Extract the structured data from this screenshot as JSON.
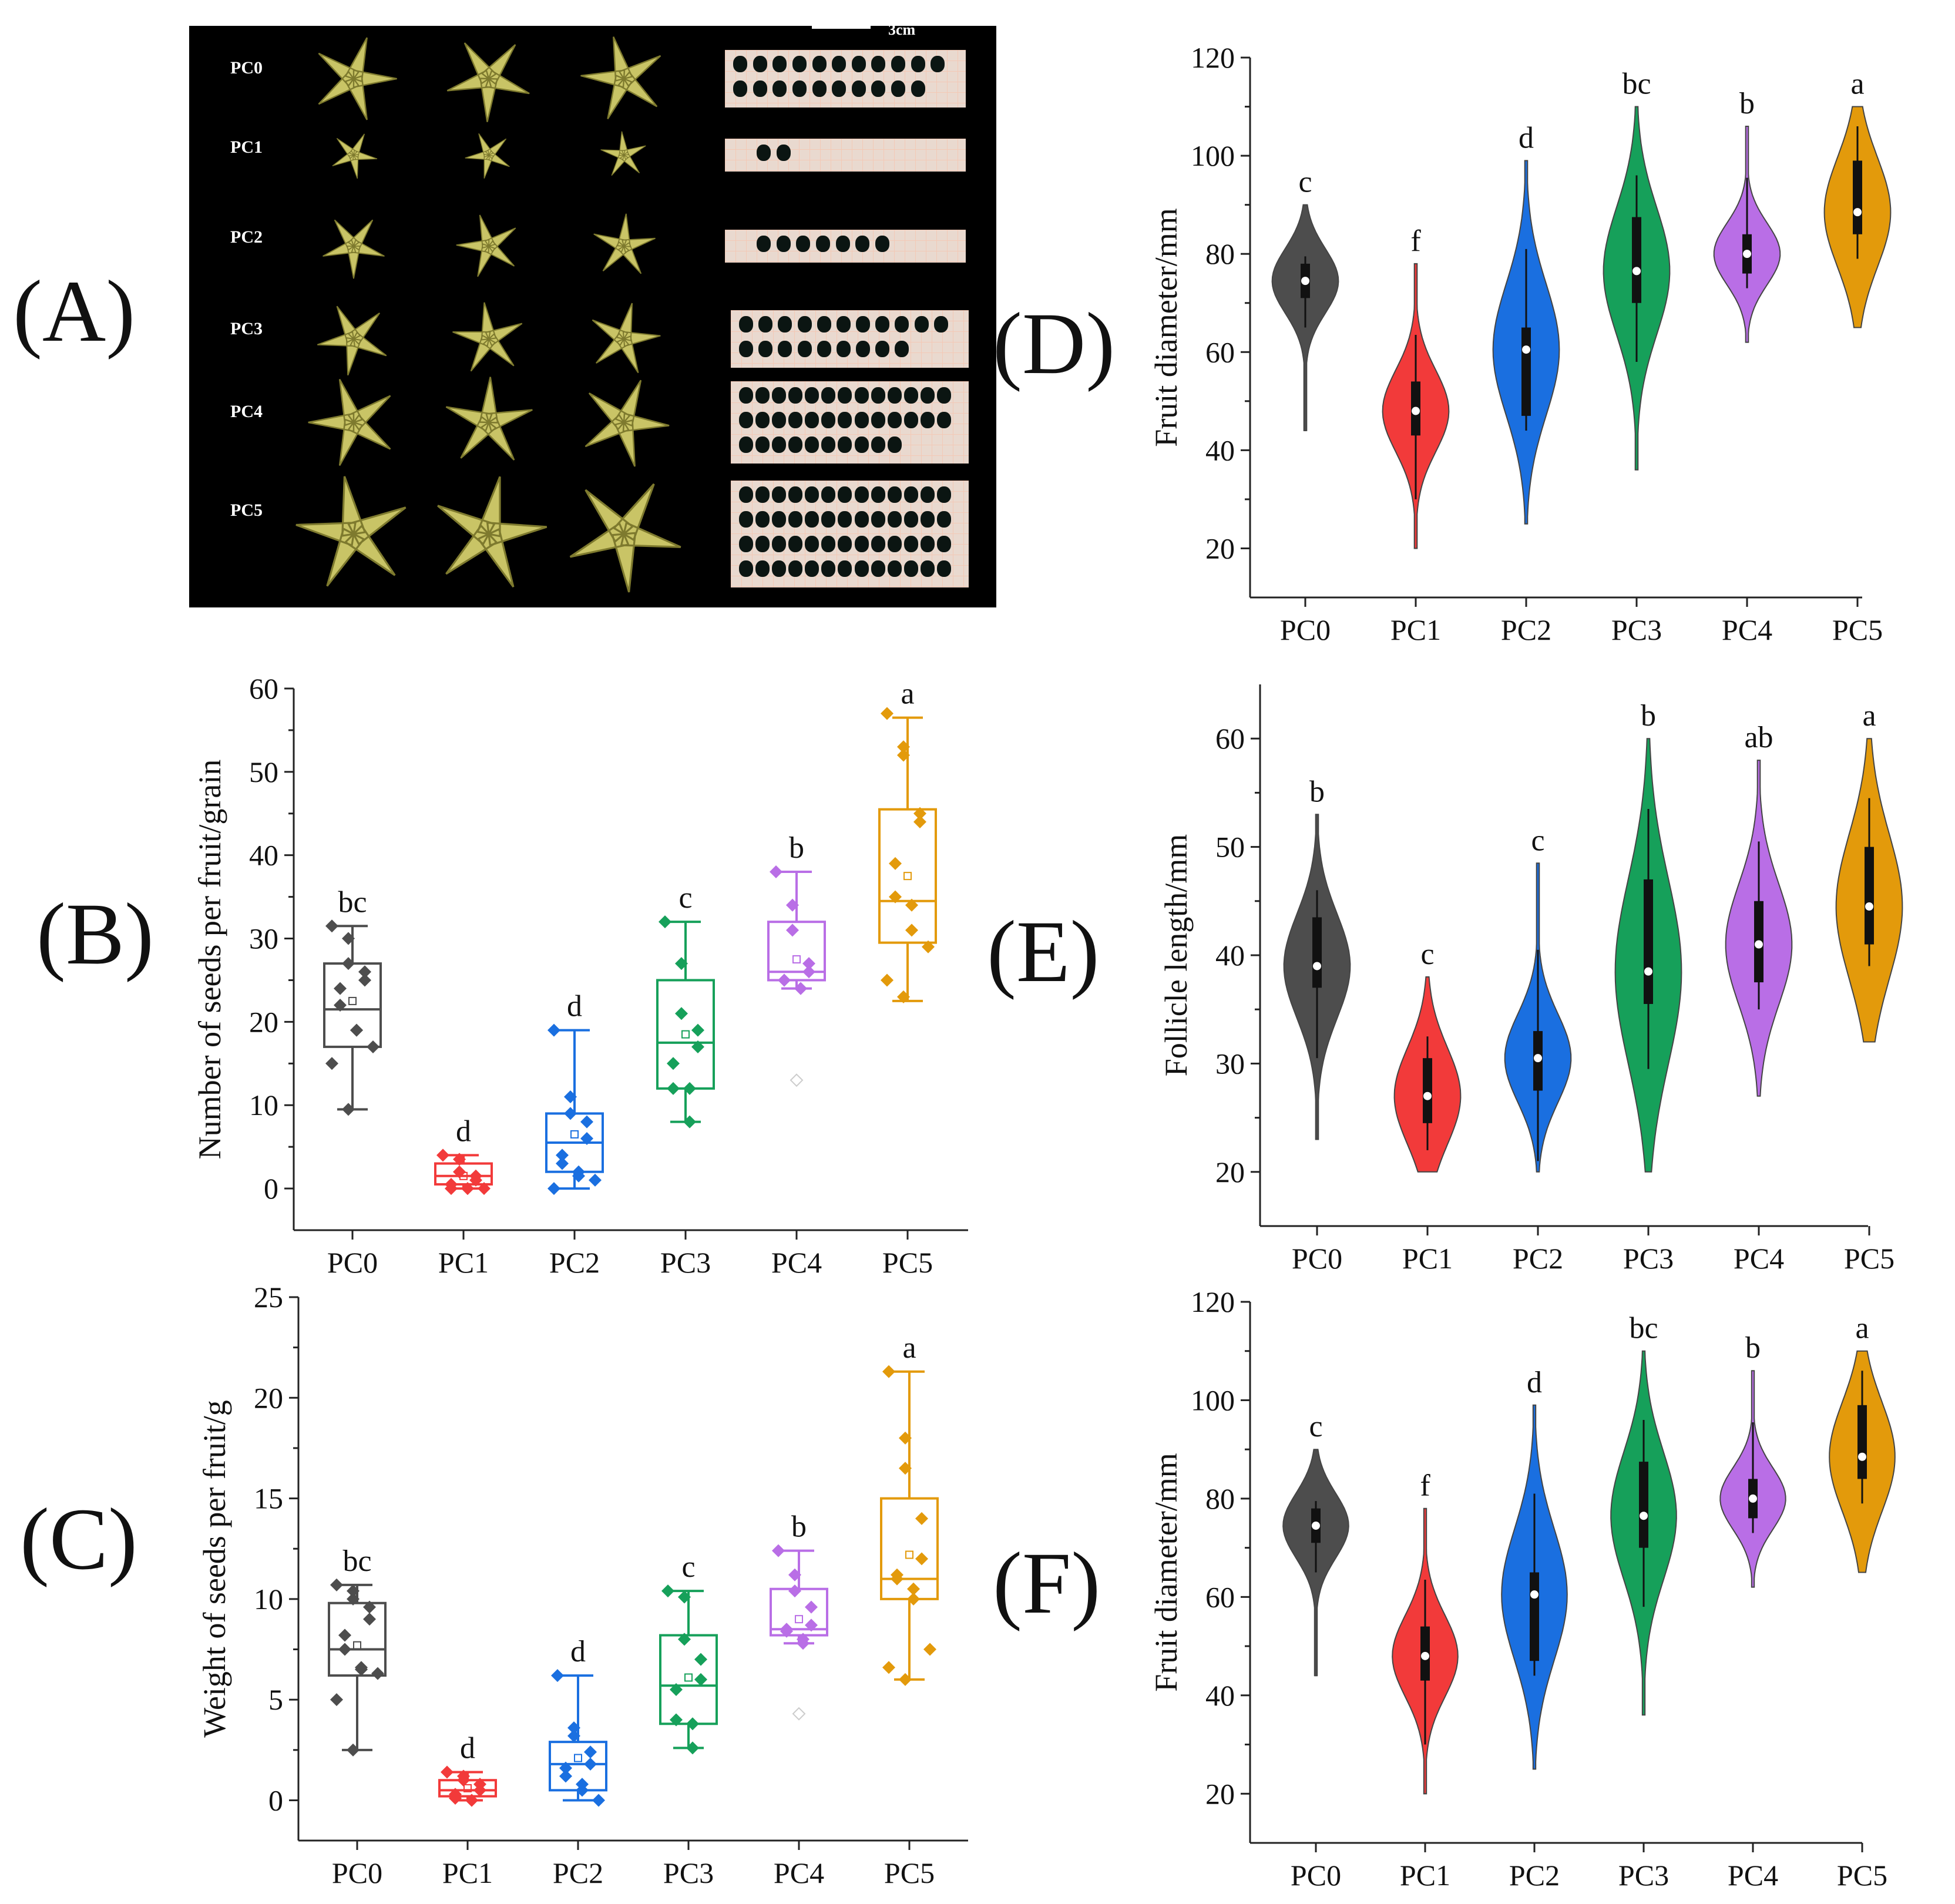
{
  "panels": {
    "A": "(A)",
    "B": "(B)",
    "C": "(C)",
    "D": "(D)",
    "E": "(E)",
    "F": "(F)"
  },
  "photo": {
    "rows": [
      "PC0",
      "PC1",
      "PC2",
      "PC3",
      "PC4",
      "PC5"
    ],
    "scale_label": "3cm",
    "seed_counts": [
      21,
      2,
      7,
      20,
      36,
      52
    ]
  },
  "colors": {
    "PC0": "#4d4d4d",
    "PC1": "#f23a3a",
    "PC2": "#1a6fe0",
    "PC3": "#16a05a",
    "PC4": "#b96ee6",
    "PC5": "#e39a0b"
  },
  "chart_data": [
    {
      "id": "D",
      "type": "violin",
      "categories": [
        "PC0",
        "PC1",
        "PC2",
        "PC3",
        "PC4",
        "PC5"
      ],
      "ylabel": "Fruit diameter/mm",
      "xlabel": "",
      "ylim": [
        10,
        120
      ],
      "yticks": [
        20,
        40,
        60,
        80,
        100,
        120
      ],
      "medians": [
        74.5,
        48,
        60.5,
        76.5,
        80,
        88.5
      ],
      "q1": [
        71,
        43,
        47,
        70,
        76,
        84
      ],
      "q3": [
        78,
        54,
        65,
        87.5,
        84,
        99
      ],
      "whisker_low": [
        65,
        30,
        44,
        58,
        73,
        79
      ],
      "whisker_high": [
        79.5,
        63.5,
        81,
        96,
        95.5,
        106
      ],
      "range_min": [
        44,
        20,
        25,
        36,
        62,
        65
      ],
      "range_max": [
        90,
        78,
        99,
        110,
        106,
        110
      ],
      "letters": [
        "c",
        "f",
        "d",
        "bc",
        "b",
        "a"
      ]
    },
    {
      "id": "E",
      "type": "violin",
      "categories": [
        "PC0",
        "PC1",
        "PC2",
        "PC3",
        "PC4",
        "PC5"
      ],
      "ylabel": "Follicle length/mm",
      "xlabel": "",
      "ylim": [
        15,
        65
      ],
      "yticks": [
        20,
        30,
        40,
        50,
        60
      ],
      "medians": [
        39,
        27,
        30.5,
        38.5,
        41,
        44.5
      ],
      "q1": [
        37,
        24.5,
        27.5,
        35.5,
        37.5,
        41
      ],
      "q3": [
        43.5,
        30.5,
        33,
        47,
        45,
        50
      ],
      "whisker_low": [
        30.5,
        22,
        21,
        29.5,
        35,
        39
      ],
      "whisker_high": [
        46,
        32.5,
        40.5,
        53.5,
        50.5,
        54.5
      ],
      "range_min": [
        23,
        20,
        20,
        20,
        27,
        32
      ],
      "range_max": [
        53,
        38,
        48.5,
        60,
        58,
        60
      ],
      "letters": [
        "b",
        "c",
        "c",
        "b",
        "ab",
        "a"
      ]
    },
    {
      "id": "F",
      "type": "violin",
      "categories": [
        "PC0",
        "PC1",
        "PC2",
        "PC3",
        "PC4",
        "PC5"
      ],
      "ylabel": "Fruit diameter/mm",
      "xlabel": "",
      "ylim": [
        10,
        120
      ],
      "yticks": [
        20,
        40,
        60,
        80,
        100,
        120
      ],
      "medians": [
        74.5,
        48,
        60.5,
        76.5,
        80,
        88.5
      ],
      "q1": [
        71,
        43,
        47,
        70,
        76,
        84
      ],
      "q3": [
        78,
        54,
        65,
        87.5,
        84,
        99
      ],
      "whisker_low": [
        65,
        30,
        44,
        58,
        73,
        79
      ],
      "whisker_high": [
        79.5,
        63.5,
        81,
        96,
        95.5,
        106
      ],
      "range_min": [
        44,
        20,
        25,
        36,
        62,
        65
      ],
      "range_max": [
        90,
        78,
        99,
        110,
        106,
        110
      ],
      "letters": [
        "c",
        "f",
        "d",
        "bc",
        "b",
        "a"
      ]
    },
    {
      "id": "B",
      "type": "box",
      "categories": [
        "PC0",
        "PC1",
        "PC2",
        "PC3",
        "PC4",
        "PC5"
      ],
      "ylabel": "Number of seeds per fruit/grain",
      "xlabel": "",
      "ylim": [
        -5,
        60
      ],
      "yticks": [
        0,
        10,
        20,
        30,
        40,
        50,
        60
      ],
      "q1": [
        17,
        0.5,
        2,
        12,
        25,
        29.5
      ],
      "median": [
        21.5,
        1.5,
        5.5,
        17.5,
        26,
        34.5
      ],
      "q3": [
        27,
        3,
        9,
        25,
        32,
        45.5
      ],
      "whisker_low": [
        9.5,
        0,
        0,
        8,
        24,
        22.5
      ],
      "whisker_high": [
        31.5,
        4,
        19,
        32,
        38,
        56.5
      ],
      "mean": [
        22.5,
        1.5,
        6.5,
        18.5,
        27.5,
        37.5
      ],
      "points": [
        [
          31.5,
          30,
          27,
          26,
          25,
          24,
          22,
          19,
          19,
          17,
          15,
          9.5
        ],
        [
          4,
          3.5,
          2,
          1.5,
          1,
          0.5,
          0,
          0,
          0,
          0
        ],
        [
          19,
          11,
          9,
          8,
          6,
          4,
          3,
          2,
          1.5,
          1,
          0
        ],
        [
          32,
          27,
          21,
          19,
          17,
          15,
          12,
          12,
          8
        ],
        [
          38,
          34,
          31,
          27,
          26,
          25,
          25,
          24,
          24
        ],
        [
          57,
          53,
          52,
          45,
          44,
          39,
          35,
          34,
          31,
          29,
          25,
          23
        ]
      ],
      "outliers": [
        [],
        [],
        [],
        [],
        [
          13
        ],
        []
      ],
      "letters": [
        "bc",
        "d",
        "d",
        "c",
        "b",
        "a"
      ]
    },
    {
      "id": "C",
      "type": "box",
      "categories": [
        "PC0",
        "PC1",
        "PC2",
        "PC3",
        "PC4",
        "PC5"
      ],
      "ylabel": "Weight of seeds per fruit/g",
      "xlabel": "",
      "ylim": [
        -2,
        25
      ],
      "yticks": [
        0,
        5,
        10,
        15,
        20,
        25
      ],
      "q1": [
        6.2,
        0.2,
        0.5,
        3.8,
        8.2,
        10
      ],
      "median": [
        7.5,
        0.5,
        1.8,
        5.7,
        8.5,
        11
      ],
      "q3": [
        9.8,
        1,
        2.9,
        8.2,
        10.5,
        15
      ],
      "whisker_low": [
        2.5,
        0,
        0,
        2.6,
        7.8,
        6
      ],
      "whisker_high": [
        10.7,
        1.4,
        6.2,
        10.4,
        12.4,
        21.3
      ],
      "mean": [
        7.7,
        0.6,
        2.1,
        6.1,
        9,
        12.2
      ],
      "points": [
        [
          10.7,
          10.4,
          10,
          9.6,
          9,
          8.2,
          7.5,
          6.6,
          6.5,
          6.3,
          5,
          2.5
        ],
        [
          1.4,
          1.2,
          1,
          0.8,
          0.5,
          0.3,
          0.1,
          0,
          0
        ],
        [
          6.2,
          3.6,
          3.2,
          2.4,
          1.8,
          1.6,
          1.2,
          0.8,
          0.5,
          0
        ],
        [
          10.4,
          10.1,
          8,
          7,
          6,
          5.5,
          4,
          3.8,
          2.6
        ],
        [
          12.4,
          11.2,
          10.4,
          9.6,
          8.7,
          8.5,
          8.4,
          8,
          7.8
        ],
        [
          21.3,
          18,
          16.5,
          14,
          12,
          11.2,
          11,
          10.5,
          10,
          7.5,
          6.6,
          6
        ]
      ],
      "outliers": [
        [],
        [],
        [],
        [],
        [
          4.3
        ],
        []
      ],
      "letters": [
        "bc",
        "d",
        "d",
        "c",
        "b",
        "a"
      ]
    }
  ]
}
